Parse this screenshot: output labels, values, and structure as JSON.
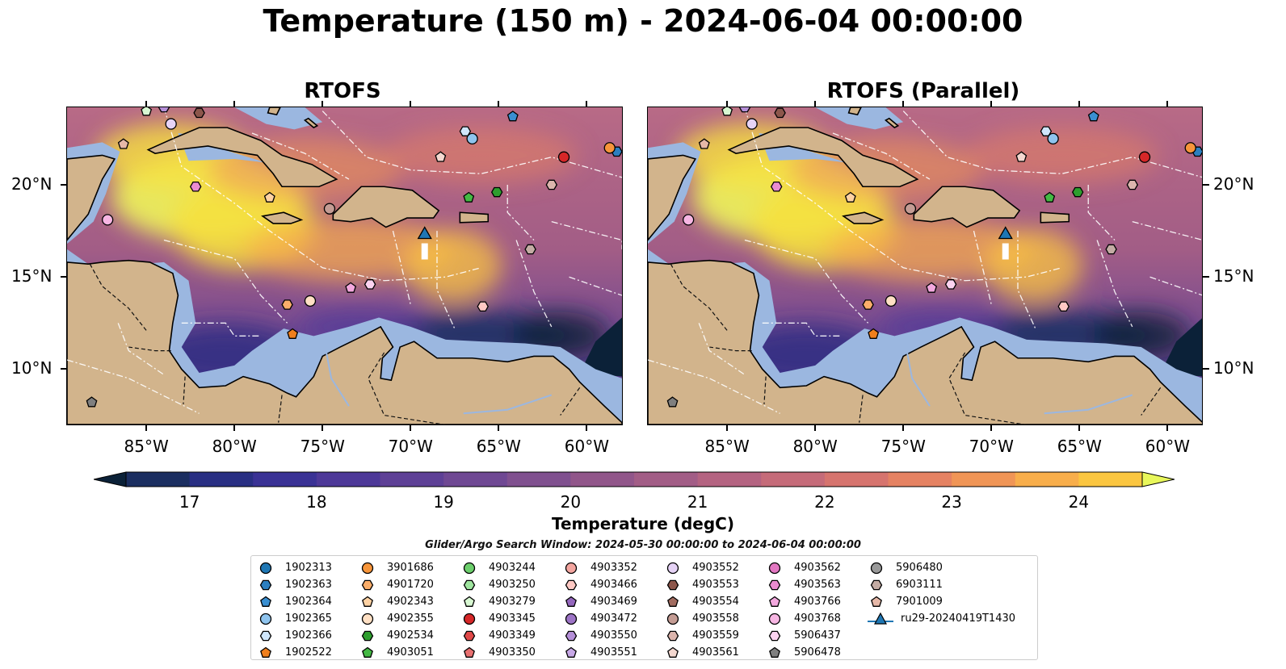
{
  "title": "Temperature (150 m) - 2024-06-04 00:00:00",
  "panels": [
    {
      "title": "RTOFS"
    },
    {
      "title": "RTOFS (Parallel)"
    }
  ],
  "map": {
    "lon_range": [
      -89.5,
      -58
    ],
    "lat_range": [
      7,
      24.2
    ],
    "lon_ticks": [
      "85°W",
      "80°W",
      "75°W",
      "70°W",
      "65°W",
      "60°W"
    ],
    "lat_ticks": [
      "20°N",
      "15°N",
      "10°N"
    ],
    "colors": {
      "land": "#d2b48c",
      "shelf": "#9bb7e0",
      "deep": "#071c2b",
      "eez_lines": "#ffffff",
      "coast": "#000000"
    }
  },
  "colorbar": {
    "label": "Temperature (degC)",
    "ticks": [
      "17",
      "18",
      "19",
      "20",
      "21",
      "22",
      "23",
      "24"
    ],
    "range": [
      16.5,
      24.5
    ],
    "step": 0.5,
    "colors": [
      "#0b2138",
      "#1b2e60",
      "#292f83",
      "#3a3295",
      "#4d3898",
      "#5e4096",
      "#6f4893",
      "#80508f",
      "#91568a",
      "#a25d86",
      "#b46381",
      "#c56b79",
      "#d6746e",
      "#e58262",
      "#f09556",
      "#f8ae4b",
      "#fbc640",
      "#f7e13d",
      "#e8f75b"
    ]
  },
  "search_window": "Glider/Argo Search Window: 2024-05-30 00:00:00 to 2024-06-04 00:00:00",
  "glider": {
    "name": "ru29-20240419T1430",
    "lon": -69.2,
    "lat": 17.0
  },
  "floats": [
    {
      "id": "1902313",
      "marker": "circle",
      "color": "#1f77b4",
      "lon": null,
      "lat": null
    },
    {
      "id": "1902363",
      "marker": "hexagon",
      "color": "#2c7fbf",
      "lon": -58.3,
      "lat": 21.8
    },
    {
      "id": "1902364",
      "marker": "pentagon",
      "color": "#3a8fd1",
      "lon": -64.2,
      "lat": 23.7
    },
    {
      "id": "1902365",
      "marker": "circle",
      "color": "#8fc4ee",
      "lon": -66.5,
      "lat": 22.5
    },
    {
      "id": "1902366",
      "marker": "hexagon",
      "color": "#cfe6fb",
      "lon": -66.9,
      "lat": 22.9
    },
    {
      "id": "1902522",
      "marker": "pentagon",
      "color": "#f07f1c",
      "lon": -76.7,
      "lat": 11.9
    },
    {
      "id": "3901686",
      "marker": "circle",
      "color": "#f7953a",
      "lon": -58.7,
      "lat": 22.0
    },
    {
      "id": "4901720",
      "marker": "hexagon",
      "color": "#fbae6a",
      "lon": -77.0,
      "lat": 13.5
    },
    {
      "id": "4902343",
      "marker": "pentagon",
      "color": "#ffd2a3",
      "lon": -78.0,
      "lat": 19.3
    },
    {
      "id": "4902355",
      "marker": "circle",
      "color": "#ffe0c4",
      "lon": -75.7,
      "lat": 13.7
    },
    {
      "id": "4902534",
      "marker": "hexagon",
      "color": "#2e9e2e",
      "lon": -65.1,
      "lat": 19.6
    },
    {
      "id": "4903051",
      "marker": "pentagon",
      "color": "#44b944",
      "lon": -66.7,
      "lat": 19.3
    },
    {
      "id": "4903244",
      "marker": "circle",
      "color": "#6ccf6c",
      "lon": null,
      "lat": null
    },
    {
      "id": "4903250",
      "marker": "hexagon",
      "color": "#9fe59f",
      "lon": null,
      "lat": null
    },
    {
      "id": "4903279",
      "marker": "pentagon",
      "color": "#d8f8d2",
      "lon": -85.0,
      "lat": 24.0
    },
    {
      "id": "4903345",
      "marker": "circle",
      "color": "#d62728",
      "lon": -61.3,
      "lat": 21.5
    },
    {
      "id": "4903349",
      "marker": "hexagon",
      "color": "#e04848",
      "lon": null,
      "lat": null
    },
    {
      "id": "4903350",
      "marker": "pentagon",
      "color": "#e87070",
      "lon": null,
      "lat": null
    },
    {
      "id": "4903352",
      "marker": "circle",
      "color": "#f4a6a0",
      "lon": null,
      "lat": null
    },
    {
      "id": "4903466",
      "marker": "hexagon",
      "color": "#ffc9c4",
      "lon": -65.9,
      "lat": 13.4
    },
    {
      "id": "4903469",
      "marker": "pentagon",
      "color": "#9467bd",
      "lon": null,
      "lat": null
    },
    {
      "id": "4903472",
      "marker": "circle",
      "color": "#9d74c6",
      "lon": null,
      "lat": null
    },
    {
      "id": "4903550",
      "marker": "hexagon",
      "color": "#b58fd8",
      "lon": -84.0,
      "lat": 24.2
    },
    {
      "id": "4903551",
      "marker": "pentagon",
      "color": "#c7a8e6",
      "lon": null,
      "lat": null
    },
    {
      "id": "4903552",
      "marker": "circle",
      "color": "#e6d3f6",
      "lon": -83.6,
      "lat": 23.3
    },
    {
      "id": "4903553",
      "marker": "hexagon",
      "color": "#8c564b",
      "lon": -82.0,
      "lat": 23.9
    },
    {
      "id": "4903554",
      "marker": "pentagon",
      "color": "#a26c60",
      "lon": null,
      "lat": null
    },
    {
      "id": "4903558",
      "marker": "circle",
      "color": "#c49c94",
      "lon": -74.6,
      "lat": 18.7
    },
    {
      "id": "4903559",
      "marker": "hexagon",
      "color": "#dcb5ad",
      "lon": -62.0,
      "lat": 20.0
    },
    {
      "id": "4903561",
      "marker": "pentagon",
      "color": "#f4d8d0",
      "lon": -68.3,
      "lat": 21.5
    },
    {
      "id": "4903562",
      "marker": "circle",
      "color": "#e377c2",
      "lon": null,
      "lat": null
    },
    {
      "id": "4903563",
      "marker": "hexagon",
      "color": "#ea8cd0",
      "lon": -82.2,
      "lat": 19.9
    },
    {
      "id": "4903766",
      "marker": "pentagon",
      "color": "#f3a8de",
      "lon": -73.4,
      "lat": 14.4
    },
    {
      "id": "4903768",
      "marker": "circle",
      "color": "#f7b6e3",
      "lon": -87.2,
      "lat": 18.1
    },
    {
      "id": "5906437",
      "marker": "hexagon",
      "color": "#fcd3f0",
      "lon": -72.3,
      "lat": 14.6
    },
    {
      "id": "5906478",
      "marker": "pentagon",
      "color": "#7f7f7f",
      "lon": -88.1,
      "lat": 8.2
    },
    {
      "id": "5906480",
      "marker": "circle",
      "color": "#999999",
      "lon": null,
      "lat": null
    },
    {
      "id": "6903111",
      "marker": "hexagon",
      "color": "#c4aca4",
      "lon": -63.2,
      "lat": 16.5
    },
    {
      "id": "7901009",
      "marker": "pentagon",
      "color": "#e6b8a8",
      "lon": -86.3,
      "lat": 22.2
    }
  ]
}
